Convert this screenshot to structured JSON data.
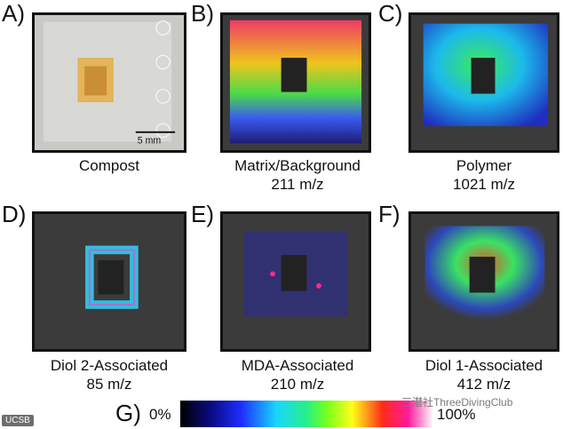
{
  "panels": [
    {
      "letter": "A)",
      "line1": "Compost",
      "line2": "",
      "scale_bar": "5 mm"
    },
    {
      "letter": "B)",
      "line1": "Matrix/Background",
      "line2": "211 m/z"
    },
    {
      "letter": "C)",
      "line1": "Polymer",
      "line2": "1021 m/z"
    },
    {
      "letter": "D)",
      "line1": "Diol 2-Associated",
      "line2": "85 m/z"
    },
    {
      "letter": "E)",
      "line1": "MDA-Associated",
      "line2": "210 m/z"
    },
    {
      "letter": "F)",
      "line1": "Diol 1-Associated",
      "line2": "412 m/z"
    }
  ],
  "colorbar": {
    "letter": "G)",
    "min_label": "0%",
    "max_label": "100%"
  },
  "watermarks": {
    "left": "UCSB",
    "right": "三潜社ThreeDivingClub"
  },
  "colors": {
    "frame": "#111111",
    "background": "#ffffff"
  }
}
